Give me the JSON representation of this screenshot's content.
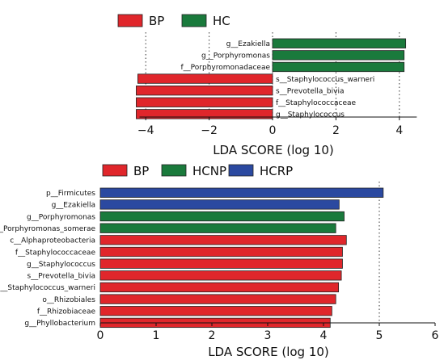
{
  "colors": {
    "BP": "#e0262b",
    "HC": "#1a7a3c",
    "HCNP": "#1a7a3c",
    "HCRP": "#2b49a0",
    "grid": "#333333"
  },
  "chart_data": [
    {
      "type": "bar",
      "orientation": "horizontal",
      "legend": [
        {
          "name": "BP"
        },
        {
          "name": "HC"
        }
      ],
      "legend_placement": "top-left",
      "xlabel": "LDA SCORE (log 10)",
      "xlim": [
        -4.4,
        4.6
      ],
      "xticks": [
        -4,
        -2,
        0,
        2,
        4
      ],
      "xtick_labels": [
        "−4",
        "−2",
        "0",
        "2",
        "4"
      ],
      "grid": "dotted vertical at ticks",
      "bars": [
        {
          "label": "g__Ezakiella",
          "value": 4.2,
          "group": "HC"
        },
        {
          "label": "g__Porphyromonas",
          "value": 4.15,
          "group": "HC"
        },
        {
          "label": "f__Porphyromonadaceae",
          "value": 4.15,
          "group": "HC"
        },
        {
          "label": "s__Staphylococcus_warneri",
          "value": -4.25,
          "group": "BP"
        },
        {
          "label": "s__Prevotella_bivia",
          "value": -4.3,
          "group": "BP"
        },
        {
          "label": "f__Staphylococcaceae",
          "value": -4.3,
          "group": "BP"
        },
        {
          "label": "g__Staphylococcus",
          "value": -4.3,
          "group": "BP"
        }
      ]
    },
    {
      "type": "bar",
      "orientation": "horizontal",
      "legend": [
        {
          "name": "BP"
        },
        {
          "name": "HCNP"
        },
        {
          "name": "HCRP"
        }
      ],
      "legend_placement": "top-left",
      "xlabel": "LDA SCORE (log 10)",
      "xlim": [
        0,
        6
      ],
      "xticks": [
        0,
        1,
        2,
        3,
        4,
        5,
        6
      ],
      "xtick_labels": [
        "0",
        "1",
        "2",
        "3",
        "4",
        "5",
        "6"
      ],
      "grid": "dotted vertical at ticks",
      "bars": [
        {
          "label": "p__Firmicutes",
          "value": 5.07,
          "group": "HCRP"
        },
        {
          "label": "g__Ezakiella",
          "value": 4.28,
          "group": "HCRP"
        },
        {
          "label": "g__Porphyromonas",
          "value": 4.37,
          "group": "HCNP"
        },
        {
          "label": "s__Porphyromonas_somerae",
          "value": 4.22,
          "group": "HCNP"
        },
        {
          "label": "c__Alphaproteobacteria",
          "value": 4.41,
          "group": "BP"
        },
        {
          "label": "f__Staphylococcaceae",
          "value": 4.34,
          "group": "BP"
        },
        {
          "label": "g__Staphylococcus",
          "value": 4.34,
          "group": "BP"
        },
        {
          "label": "s__Prevotella_bivia",
          "value": 4.32,
          "group": "BP"
        },
        {
          "label": "s__Staphylococcus_warneri",
          "value": 4.27,
          "group": "BP"
        },
        {
          "label": "o__Rhizobiales",
          "value": 4.22,
          "group": "BP"
        },
        {
          "label": "f__Rhizobiaceae",
          "value": 4.15,
          "group": "BP"
        },
        {
          "label": "g__Phyllobacterium",
          "value": 4.12,
          "group": "BP"
        }
      ]
    }
  ]
}
